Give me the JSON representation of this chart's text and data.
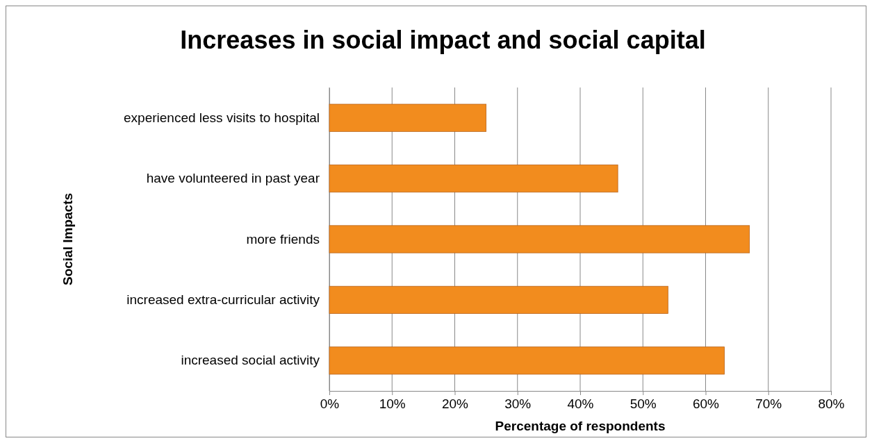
{
  "chart_data": {
    "type": "bar",
    "orientation": "horizontal",
    "title": "Increases in social impact and social capital",
    "xlabel": "Percentage of respondents",
    "ylabel": "Social Impacts",
    "categories": [
      "experienced less visits to hospital",
      "have volunteered in past year",
      "more friends",
      "increased extra-curricular activity",
      "increased social activity"
    ],
    "values": [
      25,
      46,
      67,
      54,
      63
    ],
    "color": "#f28c1e",
    "xlim": [
      0,
      80
    ],
    "xticks": [
      {
        "value": 0,
        "label": "0%"
      },
      {
        "value": 10,
        "label": "10%"
      },
      {
        "value": 20,
        "label": "20%"
      },
      {
        "value": 30,
        "label": "30%"
      },
      {
        "value": 40,
        "label": "40%"
      },
      {
        "value": 50,
        "label": "50%"
      },
      {
        "value": 60,
        "label": "60%"
      },
      {
        "value": 70,
        "label": "70%"
      },
      {
        "value": 80,
        "label": "80%"
      }
    ],
    "grid": "x"
  }
}
